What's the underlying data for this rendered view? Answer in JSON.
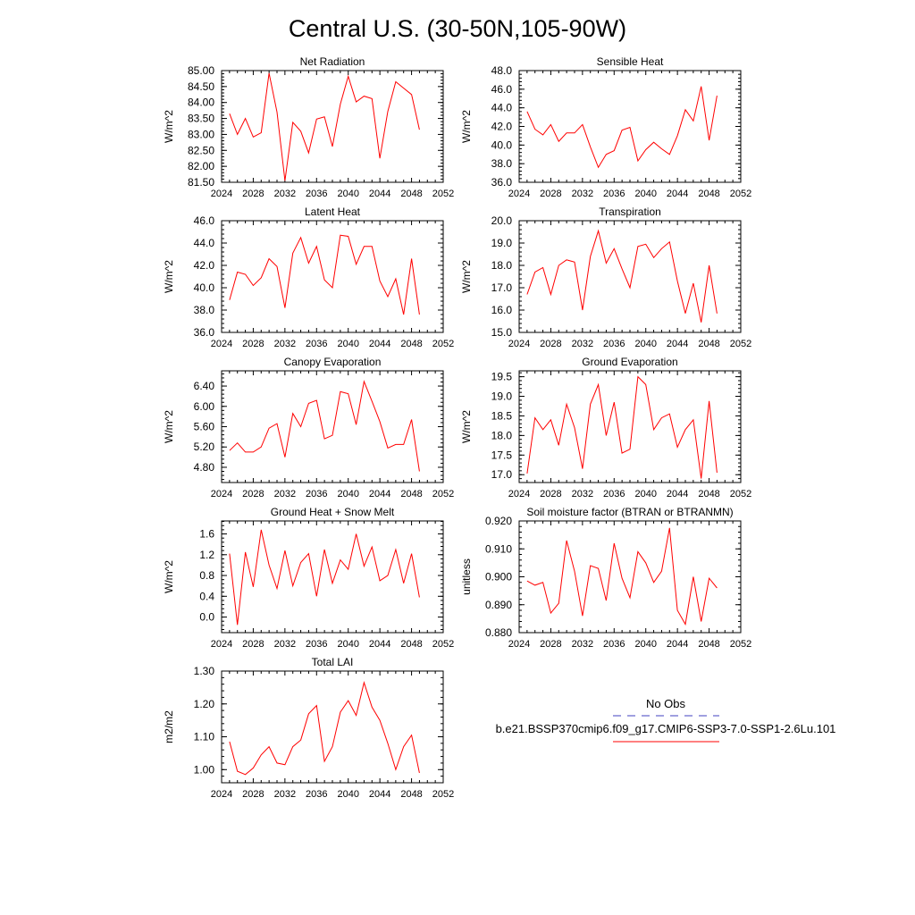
{
  "page": {
    "title": "Central U.S. (30-50N,105-90W)"
  },
  "legend": {
    "obs_label": "No Obs",
    "case_label": "b.e21.BSSP370cmip6.f09_g17.CMIP6-SSP3-7.0-SSP1-2.6Lu.101",
    "obs_color": "#4040c0",
    "case_color": "#ff0000"
  },
  "chart_data": [
    {
      "type": "line",
      "title": "Net Radiation",
      "ylabel": "W/m^2",
      "xlim": [
        2024,
        2052
      ],
      "ylim": [
        81.5,
        85.0
      ],
      "xticks": [
        "2024",
        "2028",
        "2032",
        "2036",
        "2040",
        "2044",
        "2048",
        "2052"
      ],
      "yticks": [
        "81.50",
        "82.00",
        "82.50",
        "83.00",
        "83.50",
        "84.00",
        "84.50",
        "85.00"
      ],
      "x": [
        2025,
        2026,
        2027,
        2028,
        2029,
        2030,
        2031,
        2032,
        2033,
        2034,
        2035,
        2036,
        2037,
        2038,
        2039,
        2040,
        2041,
        2042,
        2043,
        2044,
        2045,
        2046,
        2047,
        2048,
        2049
      ],
      "series": [
        {
          "color": "#ff0000",
          "values": [
            83.65,
            83.0,
            83.5,
            82.92,
            83.05,
            84.92,
            83.7,
            81.55,
            83.38,
            83.1,
            82.42,
            83.48,
            83.55,
            82.62,
            83.95,
            84.82,
            84.02,
            84.2,
            84.12,
            82.25,
            83.72,
            84.65,
            84.45,
            84.25,
            83.15
          ]
        }
      ]
    },
    {
      "type": "line",
      "title": "Sensible Heat",
      "ylabel": "W/m^2",
      "xlim": [
        2024,
        2052
      ],
      "ylim": [
        36.0,
        48.0
      ],
      "xticks": [
        "2024",
        "2028",
        "2032",
        "2036",
        "2040",
        "2044",
        "2048",
        "2052"
      ],
      "yticks": [
        "36.0",
        "38.0",
        "40.0",
        "42.0",
        "44.0",
        "46.0",
        "48.0"
      ],
      "x": [
        2025,
        2026,
        2027,
        2028,
        2029,
        2030,
        2031,
        2032,
        2033,
        2034,
        2035,
        2036,
        2037,
        2038,
        2039,
        2040,
        2041,
        2042,
        2043,
        2044,
        2045,
        2046,
        2047,
        2048,
        2049
      ],
      "series": [
        {
          "color": "#ff0000",
          "values": [
            43.6,
            41.7,
            41.1,
            42.2,
            40.4,
            41.3,
            41.3,
            42.2,
            39.8,
            37.6,
            39.0,
            39.4,
            41.6,
            41.9,
            38.3,
            39.5,
            40.3,
            39.6,
            39.0,
            41.0,
            43.8,
            42.6,
            46.3,
            40.5,
            45.3
          ]
        }
      ]
    },
    {
      "type": "line",
      "title": "Latent Heat",
      "ylabel": "W/m^2",
      "xlim": [
        2024,
        2052
      ],
      "ylim": [
        36.0,
        46.0
      ],
      "xticks": [
        "2024",
        "2028",
        "2032",
        "2036",
        "2040",
        "2044",
        "2048",
        "2052"
      ],
      "yticks": [
        "36.0",
        "38.0",
        "40.0",
        "42.0",
        "44.0",
        "46.0"
      ],
      "x": [
        2025,
        2026,
        2027,
        2028,
        2029,
        2030,
        2031,
        2032,
        2033,
        2034,
        2035,
        2036,
        2037,
        2038,
        2039,
        2040,
        2041,
        2042,
        2043,
        2044,
        2045,
        2046,
        2047,
        2048,
        2049
      ],
      "series": [
        {
          "color": "#ff0000",
          "values": [
            38.9,
            41.4,
            41.2,
            40.2,
            40.9,
            42.6,
            41.9,
            38.2,
            43.1,
            44.5,
            42.2,
            43.7,
            40.7,
            40.0,
            44.7,
            44.6,
            42.1,
            43.7,
            43.7,
            40.6,
            39.2,
            40.8,
            37.6,
            42.6,
            37.6
          ]
        }
      ]
    },
    {
      "type": "line",
      "title": "Transpiration",
      "ylabel": "W/m^2",
      "xlim": [
        2024,
        2052
      ],
      "ylim": [
        15.0,
        20.0
      ],
      "xticks": [
        "2024",
        "2028",
        "2032",
        "2036",
        "2040",
        "2044",
        "2048",
        "2052"
      ],
      "yticks": [
        "15.0",
        "16.0",
        "17.0",
        "18.0",
        "19.0",
        "20.0"
      ],
      "x": [
        2025,
        2026,
        2027,
        2028,
        2029,
        2030,
        2031,
        2032,
        2033,
        2034,
        2035,
        2036,
        2037,
        2038,
        2039,
        2040,
        2041,
        2042,
        2043,
        2044,
        2045,
        2046,
        2047,
        2048,
        2049
      ],
      "series": [
        {
          "color": "#ff0000",
          "values": [
            16.7,
            17.7,
            17.9,
            16.7,
            18.0,
            18.25,
            18.15,
            16.0,
            18.4,
            19.55,
            18.1,
            18.75,
            17.85,
            17.0,
            18.85,
            18.95,
            18.35,
            18.75,
            19.05,
            17.3,
            15.85,
            17.2,
            15.45,
            18.0,
            15.85
          ]
        }
      ]
    },
    {
      "type": "line",
      "title": "Canopy Evaporation",
      "ylabel": "W/m^2",
      "xlim": [
        2024,
        2052
      ],
      "ylim": [
        4.5,
        6.7
      ],
      "xticks": [
        "2024",
        "2028",
        "2032",
        "2036",
        "2040",
        "2044",
        "2048",
        "2052"
      ],
      "yticks": [
        "4.80",
        "5.20",
        "5.60",
        "6.00",
        "6.40"
      ],
      "x": [
        2025,
        2026,
        2027,
        2028,
        2029,
        2030,
        2031,
        2032,
        2033,
        2034,
        2035,
        2036,
        2037,
        2038,
        2039,
        2040,
        2041,
        2042,
        2043,
        2044,
        2045,
        2046,
        2047,
        2048,
        2049
      ],
      "series": [
        {
          "color": "#ff0000",
          "values": [
            5.13,
            5.28,
            5.1,
            5.1,
            5.2,
            5.57,
            5.66,
            5.0,
            5.86,
            5.6,
            6.06,
            6.12,
            5.36,
            5.43,
            6.29,
            6.25,
            5.64,
            6.49,
            6.1,
            5.7,
            5.18,
            5.25,
            5.25,
            5.74,
            4.72
          ]
        }
      ]
    },
    {
      "type": "line",
      "title": "Ground Evaporation",
      "ylabel": "W/m^2",
      "xlim": [
        2024,
        2052
      ],
      "ylim": [
        16.8,
        19.65
      ],
      "xticks": [
        "2024",
        "2028",
        "2032",
        "2036",
        "2040",
        "2044",
        "2048",
        "2052"
      ],
      "yticks": [
        "17.0",
        "17.5",
        "18.0",
        "18.5",
        "19.0",
        "19.5"
      ],
      "x": [
        2025,
        2026,
        2027,
        2028,
        2029,
        2030,
        2031,
        2032,
        2033,
        2034,
        2035,
        2036,
        2037,
        2038,
        2039,
        2040,
        2041,
        2042,
        2043,
        2044,
        2045,
        2046,
        2047,
        2048,
        2049
      ],
      "series": [
        {
          "color": "#ff0000",
          "values": [
            17.03,
            18.45,
            18.15,
            18.4,
            17.75,
            18.8,
            18.2,
            17.15,
            18.8,
            19.3,
            18.0,
            18.85,
            17.55,
            17.65,
            19.5,
            19.3,
            18.15,
            18.45,
            18.55,
            17.7,
            18.15,
            18.4,
            16.9,
            18.88,
            17.05
          ]
        }
      ]
    },
    {
      "type": "line",
      "title": "Ground Heat + Snow Melt",
      "ylabel": "W/m^2",
      "xlim": [
        2024,
        2052
      ],
      "ylim": [
        -0.3,
        1.85
      ],
      "xticks": [
        "2024",
        "2028",
        "2032",
        "2036",
        "2040",
        "2044",
        "2048",
        "2052"
      ],
      "yticks": [
        "0.0",
        "0.4",
        "0.8",
        "1.2",
        "1.6"
      ],
      "x": [
        2025,
        2026,
        2027,
        2028,
        2029,
        2030,
        2031,
        2032,
        2033,
        2034,
        2035,
        2036,
        2037,
        2038,
        2039,
        2040,
        2041,
        2042,
        2043,
        2044,
        2045,
        2046,
        2047,
        2048,
        2049
      ],
      "series": [
        {
          "color": "#ff0000",
          "values": [
            1.22,
            -0.15,
            1.25,
            0.58,
            1.68,
            1.0,
            0.55,
            1.28,
            0.6,
            1.05,
            1.22,
            0.4,
            1.3,
            0.65,
            1.1,
            0.92,
            1.6,
            0.98,
            1.35,
            0.7,
            0.8,
            1.3,
            0.65,
            1.22,
            0.38
          ]
        }
      ]
    },
    {
      "type": "line",
      "title": "Soil moisture factor (BTRAN or BTRANMN)",
      "ylabel": "unitless",
      "xlim": [
        2024,
        2052
      ],
      "ylim": [
        0.88,
        0.92
      ],
      "xticks": [
        "2024",
        "2028",
        "2032",
        "2036",
        "2040",
        "2044",
        "2048",
        "2052"
      ],
      "yticks": [
        "0.880",
        "0.890",
        "0.900",
        "0.910",
        "0.920"
      ],
      "x": [
        2025,
        2026,
        2027,
        2028,
        2029,
        2030,
        2031,
        2032,
        2033,
        2034,
        2035,
        2036,
        2037,
        2038,
        2039,
        2040,
        2041,
        2042,
        2043,
        2044,
        2045,
        2046,
        2047,
        2048,
        2049
      ],
      "series": [
        {
          "color": "#ff0000",
          "values": [
            0.8985,
            0.897,
            0.898,
            0.887,
            0.8905,
            0.913,
            0.902,
            0.886,
            0.904,
            0.903,
            0.8915,
            0.912,
            0.8995,
            0.8925,
            0.909,
            0.905,
            0.898,
            0.902,
            0.9175,
            0.888,
            0.883,
            0.9,
            0.884,
            0.8995,
            0.896
          ]
        }
      ]
    },
    {
      "type": "line",
      "title": "Total LAI",
      "ylabel": "m2/m2",
      "xlim": [
        2024,
        2052
      ],
      "ylim": [
        0.96,
        1.3
      ],
      "xticks": [
        "2024",
        "2028",
        "2032",
        "2036",
        "2040",
        "2044",
        "2048",
        "2052"
      ],
      "yticks": [
        "1.00",
        "1.10",
        "1.20",
        "1.30"
      ],
      "x": [
        2025,
        2026,
        2027,
        2028,
        2029,
        2030,
        2031,
        2032,
        2033,
        2034,
        2035,
        2036,
        2037,
        2038,
        2039,
        2040,
        2041,
        2042,
        2043,
        2044,
        2045,
        2046,
        2047,
        2048,
        2049
      ],
      "series": [
        {
          "color": "#ff0000",
          "values": [
            1.085,
            0.995,
            0.985,
            1.005,
            1.045,
            1.07,
            1.02,
            1.015,
            1.07,
            1.09,
            1.17,
            1.195,
            1.025,
            1.07,
            1.175,
            1.21,
            1.165,
            1.265,
            1.19,
            1.15,
            1.08,
            1.0,
            1.07,
            1.105,
            0.99
          ]
        }
      ]
    }
  ]
}
